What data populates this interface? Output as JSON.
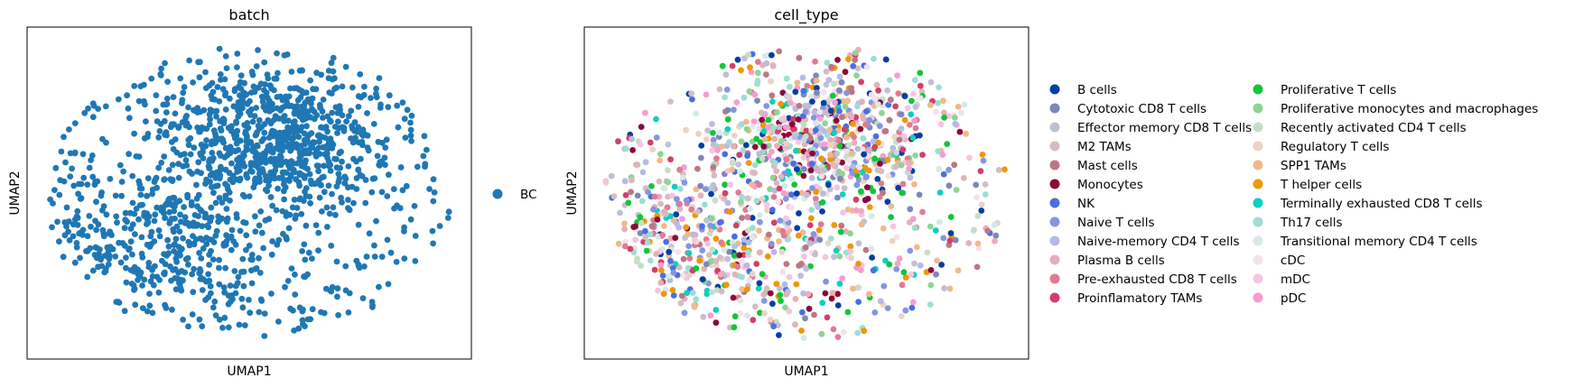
{
  "chart_data": [
    {
      "type": "scatter",
      "title": "batch",
      "xlabel": "UMAP1",
      "ylabel": "UMAP2",
      "xticks": false,
      "yticks": false,
      "grid": false,
      "legend_placement": "right",
      "legend": [
        {
          "name": "BC",
          "color": "#1f77b4"
        }
      ],
      "point_count": 1400
    },
    {
      "type": "scatter",
      "title": "cell_type",
      "xlabel": "UMAP1",
      "ylabel": "UMAP2",
      "xticks": false,
      "yticks": false,
      "grid": false,
      "legend_placement": "right",
      "legend": [
        {
          "name": "B cells",
          "color": "#023fa5"
        },
        {
          "name": "Cytotoxic CD8 T cells",
          "color": "#7d87b9"
        },
        {
          "name": "Effector memory CD8 T cells",
          "color": "#bec1d4"
        },
        {
          "name": "M2 TAMs",
          "color": "#d6bcc0"
        },
        {
          "name": "Mast cells",
          "color": "#bb7784"
        },
        {
          "name": "Monocytes",
          "color": "#8e063b"
        },
        {
          "name": "NK",
          "color": "#4a6fe3"
        },
        {
          "name": "Naive T cells",
          "color": "#8595e1"
        },
        {
          "name": "Naive-memory CD4 T cells",
          "color": "#b5bbe3"
        },
        {
          "name": "Plasma B cells",
          "color": "#e6afb9"
        },
        {
          "name": "Pre-exhausted CD8 T cells",
          "color": "#e07b91"
        },
        {
          "name": "Proinflamatory TAMs",
          "color": "#d33f6a"
        },
        {
          "name": "Proliferative T cells",
          "color": "#11c638"
        },
        {
          "name": "Proliferative monocytes and macrophages",
          "color": "#8dd593"
        },
        {
          "name": "Recently activated CD4 T cells",
          "color": "#c6dec7"
        },
        {
          "name": "Regulatory T cells",
          "color": "#ead3c6"
        },
        {
          "name": "SPP1 TAMs",
          "color": "#f0b98d"
        },
        {
          "name": "T helper cells",
          "color": "#ef9708"
        },
        {
          "name": "Terminally exhausted CD8 T cells",
          "color": "#0fcfc0"
        },
        {
          "name": "Th17 cells",
          "color": "#9cded6"
        },
        {
          "name": "Transitional memory CD4 T cells",
          "color": "#d5eae7"
        },
        {
          "name": "cDC",
          "color": "#f3e1eb"
        },
        {
          "name": "mDC",
          "color": "#f6c4e1"
        },
        {
          "name": "pDC",
          "color": "#f79cd4"
        }
      ],
      "point_count": 1400
    }
  ]
}
